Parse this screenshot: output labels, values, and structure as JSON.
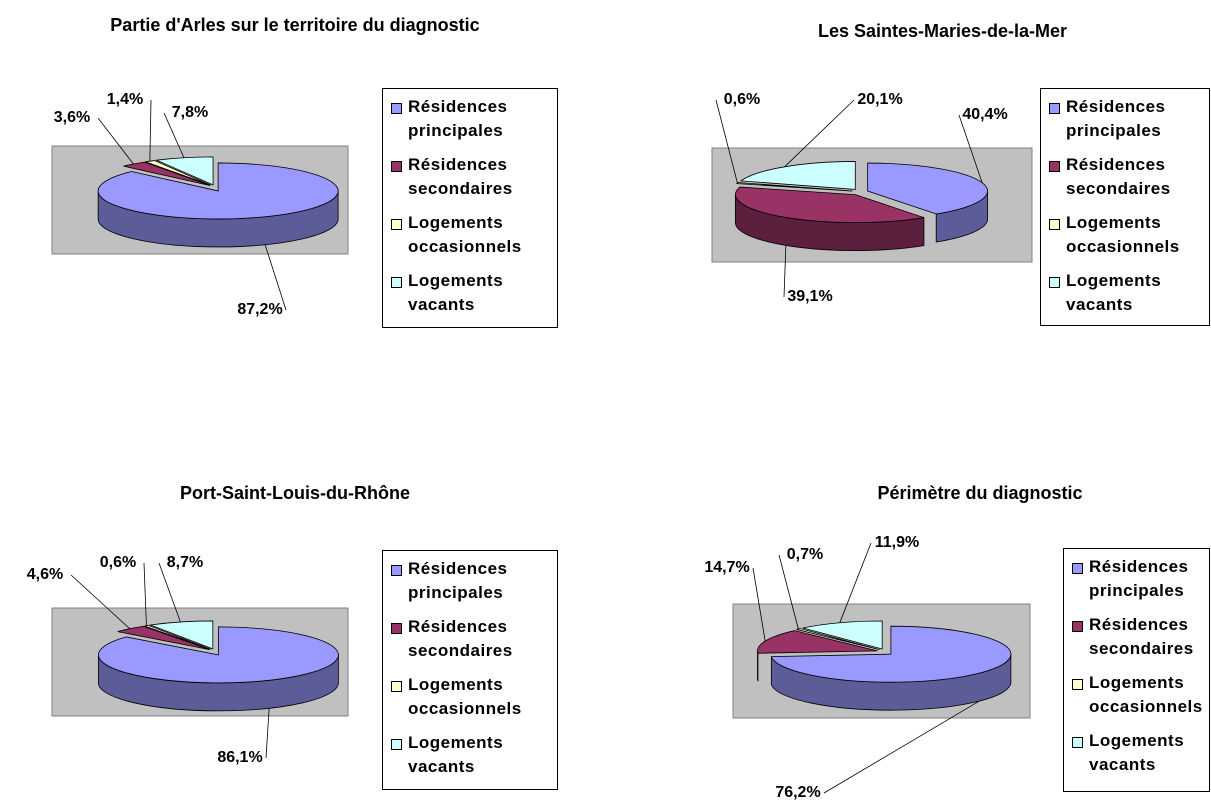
{
  "chart_data": [
    {
      "type": "pie",
      "title": "Partie d'Arles sur le territoire du diagnostic",
      "categories": [
        "Résidences principales",
        "Résidences secondaires",
        "Logements occasionnels",
        "Logements vacants"
      ],
      "values": [
        87.2,
        3.6,
        1.4,
        7.8
      ],
      "value_labels": [
        "87,2%",
        "3,6%",
        "1,4%",
        "7,8%"
      ],
      "colors": [
        "#9999ff",
        "#993366",
        "#ffffcc",
        "#ccffff"
      ]
    },
    {
      "type": "pie",
      "title": "Les Saintes-Maries-de-la-Mer",
      "categories": [
        "Résidences principales",
        "Résidences secondaires",
        "Logements occasionnels",
        "Logements vacants"
      ],
      "values": [
        40.4,
        39.1,
        0.6,
        20.1
      ],
      "value_labels": [
        "40,4%",
        "39,1%",
        "0,6%",
        "20,1%"
      ],
      "colors": [
        "#9999ff",
        "#993366",
        "#ffffcc",
        "#ccffff"
      ]
    },
    {
      "type": "pie",
      "title": "Port-Saint-Louis-du-Rhône",
      "categories": [
        "Résidences principales",
        "Résidences secondaires",
        "Logements occasionnels",
        "Logements vacants"
      ],
      "values": [
        86.1,
        4.6,
        0.6,
        8.7
      ],
      "value_labels": [
        "86,1%",
        "4,6%",
        "0,6%",
        "8,7%"
      ],
      "colors": [
        "#9999ff",
        "#993366",
        "#ffffcc",
        "#ccffff"
      ]
    },
    {
      "type": "pie",
      "title": "Périmètre du diagnostic",
      "categories": [
        "Résidences principales",
        "Résidences secondaires",
        "Logements occasionnels",
        "Logements vacants"
      ],
      "values": [
        76.2,
        14.7,
        0.7,
        11.9
      ],
      "value_labels": [
        "76,2%",
        "14,7%",
        "0,7%",
        "11,9%"
      ],
      "colors": [
        "#9999ff",
        "#993366",
        "#ffffcc",
        "#ccffff"
      ]
    }
  ]
}
